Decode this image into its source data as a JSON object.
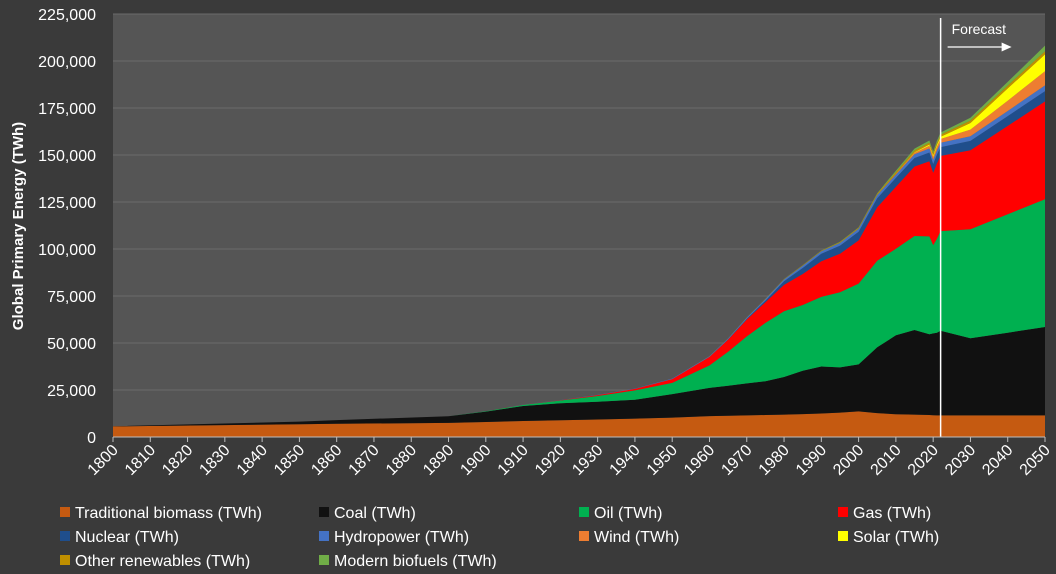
{
  "chart_data": {
    "type": "area",
    "stacked": true,
    "ylabel": "Global Primary Energy (TWh)",
    "xlabel": "",
    "x_ticks": [
      1800,
      1810,
      1820,
      1830,
      1840,
      1850,
      1860,
      1870,
      1880,
      1890,
      1900,
      1910,
      1920,
      1930,
      1940,
      1950,
      1960,
      1970,
      1980,
      1990,
      2000,
      2010,
      2020,
      2030,
      2040,
      2050
    ],
    "x_tick_labels": [
      "1800",
      "1810",
      "1820",
      "1830",
      "1840",
      "1850",
      "1860",
      "1870",
      "1880",
      "1890",
      "1900",
      "1910",
      "1920",
      "1930",
      "1940",
      "1950",
      "1960",
      "1970",
      "1980",
      "1990",
      "2000",
      "2010",
      "2020",
      "2030",
      "2040",
      "2050"
    ],
    "y_ticks": [
      0,
      25000,
      50000,
      75000,
      100000,
      125000,
      150000,
      175000,
      200000,
      225000
    ],
    "y_tick_labels": [
      "0",
      "25,000",
      "50,000",
      "75,000",
      "100,000",
      "125,000",
      "150,000",
      "175,000",
      "200,000",
      "225,000"
    ],
    "xlim": [
      1800,
      2050
    ],
    "ylim": [
      0,
      225000
    ],
    "grid": "horizontal",
    "legend_position": "bottom",
    "colors": {
      "plot_background": "#555555",
      "page_background": "#3a3a3a",
      "grid": "#6a6a6a",
      "text": "#ffffff"
    },
    "annotation": {
      "label": "Forecast",
      "x": 2022
    },
    "x": [
      1800,
      1850,
      1860,
      1890,
      1900,
      1910,
      1920,
      1930,
      1940,
      1950,
      1960,
      1965,
      1970,
      1975,
      1980,
      1985,
      1990,
      1995,
      2000,
      2005,
      2010,
      2015,
      2019,
      2020,
      2021,
      2022,
      2030,
      2040,
      2050
    ],
    "series": [
      {
        "name": "Traditional biomass (TWh)",
        "color": "#c55a11",
        "values": [
          5650,
          6800,
          7000,
          7500,
          8000,
          8500,
          8900,
          9300,
          9800,
          10300,
          11100,
          11300,
          11500,
          11700,
          11900,
          12200,
          12500,
          13000,
          13600,
          12700,
          12100,
          11900,
          11700,
          11600,
          11500,
          11500,
          11500,
          11500,
          11500
        ]
      },
      {
        "name": "Coal (TWh)",
        "color": "#111111",
        "values": [
          100,
          1400,
          2000,
          3500,
          5500,
          8000,
          9000,
          9500,
          10000,
          12500,
          15000,
          16000,
          17000,
          18000,
          20000,
          23000,
          25000,
          24000,
          25000,
          35000,
          42000,
          45000,
          43000,
          43500,
          44000,
          45000,
          41000,
          44000,
          47000
        ]
      },
      {
        "name": "Oil (TWh)",
        "color": "#00b050",
        "values": [
          0,
          0,
          0,
          0,
          200,
          600,
          1500,
          3000,
          5000,
          6000,
          12000,
          18000,
          25000,
          31000,
          35000,
          35000,
          37000,
          40000,
          43000,
          46000,
          46000,
          50000,
          52000,
          47000,
          50000,
          53000,
          58000,
          63000,
          68000
        ]
      },
      {
        "name": "Gas (TWh)",
        "color": "#ff0000",
        "values": [
          0,
          0,
          0,
          0,
          0,
          100,
          200,
          500,
          800,
          2000,
          4500,
          6500,
          9000,
          11000,
          14000,
          16500,
          19000,
          20500,
          23000,
          28500,
          33000,
          37000,
          40000,
          38500,
          40000,
          40000,
          42000,
          47000,
          52000
        ]
      },
      {
        "name": "Nuclear (TWh)",
        "color": "#1f4e8c",
        "values": [
          0,
          0,
          0,
          0,
          0,
          0,
          0,
          0,
          0,
          0,
          0,
          100,
          300,
          800,
          1900,
          3200,
          4000,
          4300,
          4600,
          4800,
          4700,
          4500,
          4650,
          4600,
          4700,
          4700,
          5000,
          5200,
          5500
        ]
      },
      {
        "name": "Hydropower (TWh)",
        "color": "#4472c4",
        "values": [
          0,
          0,
          0,
          0,
          0,
          20,
          50,
          100,
          150,
          250,
          400,
          500,
          700,
          850,
          1000,
          1200,
          1300,
          1450,
          1600,
          1650,
          1800,
          2000,
          2100,
          2200,
          2250,
          2300,
          2500,
          2700,
          3000
        ]
      },
      {
        "name": "Wind (TWh)",
        "color": "#ed7d31",
        "values": [
          0,
          0,
          0,
          0,
          0,
          0,
          0,
          0,
          0,
          0,
          0,
          0,
          0,
          0,
          0,
          0,
          0,
          10,
          30,
          100,
          340,
          830,
          1420,
          1590,
          1870,
          2000,
          3500,
          5500,
          7500
        ]
      },
      {
        "name": "Solar (TWh)",
        "color": "#ffff00",
        "values": [
          0,
          0,
          0,
          0,
          0,
          0,
          0,
          0,
          0,
          0,
          0,
          0,
          0,
          0,
          0,
          0,
          0,
          0,
          1,
          5,
          32,
          250,
          720,
          850,
          1030,
          1200,
          3500,
          6500,
          9000
        ]
      },
      {
        "name": "Other renewables (TWh)",
        "color": "#bf8f00",
        "values": [
          0,
          0,
          0,
          0,
          0,
          0,
          0,
          0,
          0,
          0,
          10,
          50,
          100,
          150,
          200,
          250,
          300,
          400,
          500,
          600,
          800,
          900,
          1000,
          1000,
          1050,
          1100,
          1300,
          1500,
          1700
        ]
      },
      {
        "name": "Modern biofuels (TWh)",
        "color": "#70ad47",
        "values": [
          0,
          0,
          0,
          0,
          0,
          0,
          0,
          0,
          0,
          0,
          0,
          0,
          0,
          0,
          50,
          100,
          100,
          150,
          150,
          300,
          900,
          1000,
          1100,
          1000,
          1100,
          1150,
          1500,
          2000,
          3000
        ]
      }
    ]
  }
}
